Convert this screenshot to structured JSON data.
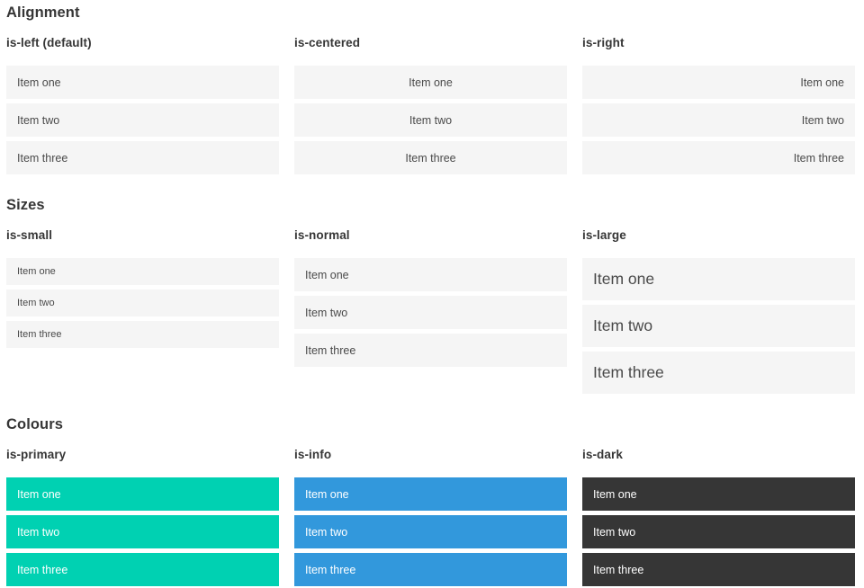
{
  "colors": {
    "primary": "#00d1b2",
    "info": "#3298dc",
    "dark": "#363636",
    "lightbg": "#f5f5f5",
    "text": "#4a4a4a",
    "heading": "#363636"
  },
  "sections": [
    {
      "title": "Alignment",
      "columns": [
        {
          "label": "is-left (default)",
          "variant": "left",
          "items": [
            "Item one",
            "Item two",
            "Item three"
          ]
        },
        {
          "label": "is-centered",
          "variant": "center",
          "items": [
            "Item one",
            "Item two",
            "Item three"
          ]
        },
        {
          "label": "is-right",
          "variant": "right",
          "items": [
            "Item one",
            "Item two",
            "Item three"
          ]
        }
      ]
    },
    {
      "title": "Sizes",
      "columns": [
        {
          "label": "is-small",
          "variant": "small",
          "items": [
            "Item one",
            "Item two",
            "Item three"
          ]
        },
        {
          "label": "is-normal",
          "variant": "normal",
          "items": [
            "Item one",
            "Item two",
            "Item three"
          ]
        },
        {
          "label": "is-large",
          "variant": "large",
          "items": [
            "Item one",
            "Item two",
            "Item three"
          ]
        }
      ]
    },
    {
      "title": "Colours",
      "columns": [
        {
          "label": "is-primary",
          "variant": "primary",
          "items": [
            "Item one",
            "Item two",
            "Item three"
          ]
        },
        {
          "label": "is-info",
          "variant": "info",
          "items": [
            "Item one",
            "Item two",
            "Item three"
          ]
        },
        {
          "label": "is-dark",
          "variant": "dark",
          "items": [
            "Item one",
            "Item two",
            "Item three"
          ]
        }
      ]
    }
  ]
}
